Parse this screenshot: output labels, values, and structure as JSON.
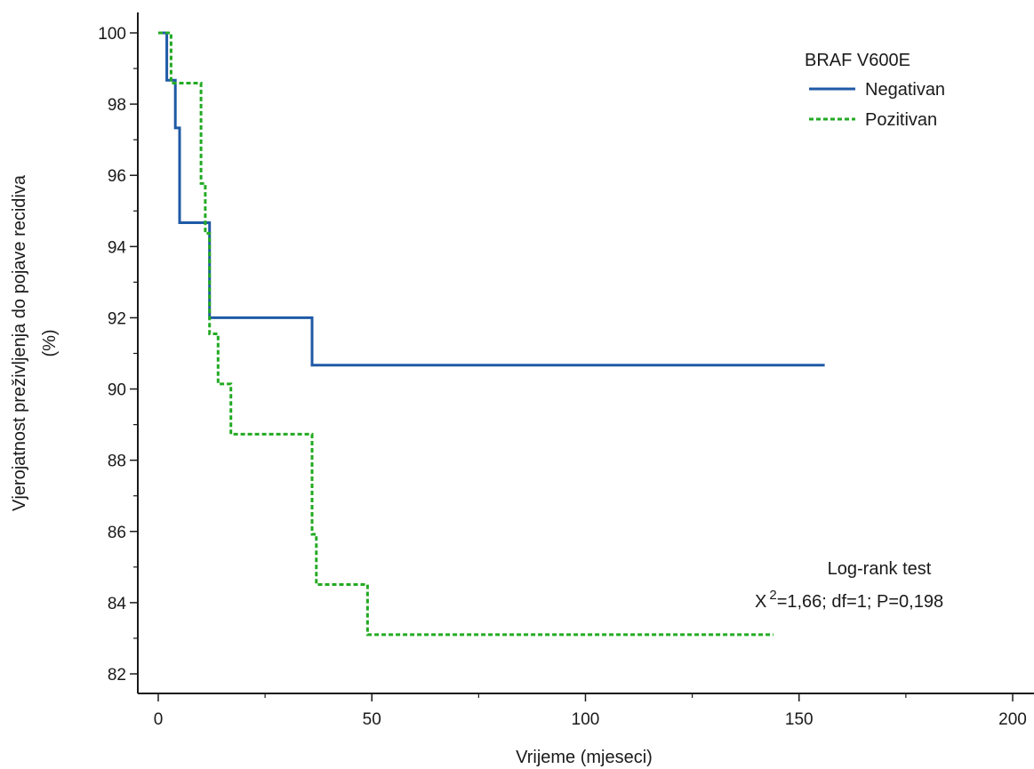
{
  "chart_data": {
    "type": "line",
    "subtype": "kaplan-meier",
    "title": "",
    "xlabel": "Vrijeme (mjeseci)",
    "ylabel_line1": "Vjerojatnost preživljenja do pojave recidiva",
    "ylabel_line2": "(%)",
    "xlim": [
      0,
      200
    ],
    "ylim": [
      82,
      100
    ],
    "x_ticks": [
      0,
      50,
      100,
      150,
      200
    ],
    "y_ticks": [
      82,
      84,
      86,
      88,
      90,
      92,
      94,
      96,
      98,
      100
    ],
    "grid": false,
    "legend": {
      "title": "BRAF V600E",
      "placement": "top-right"
    },
    "series": [
      {
        "name": "Negativan",
        "color": "#1f5aa6",
        "dash": "solid",
        "x": [
          0,
          2,
          2,
          4,
          4,
          5,
          5,
          12,
          12,
          36,
          36,
          156
        ],
        "y": [
          100,
          100,
          98.67,
          98.67,
          97.33,
          97.33,
          94.67,
          94.67,
          92.0,
          92.0,
          90.67,
          90.67
        ]
      },
      {
        "name": "Pozitivan",
        "color": "#22aa22",
        "dash": "dashed",
        "x": [
          0,
          3,
          3,
          10,
          10,
          11,
          11,
          12,
          12,
          14,
          14,
          17,
          17,
          36,
          36,
          37,
          37,
          49,
          49,
          144
        ],
        "y": [
          100,
          100,
          98.59,
          98.59,
          95.77,
          95.77,
          94.37,
          94.37,
          91.55,
          91.55,
          90.14,
          90.14,
          88.73,
          88.73,
          85.92,
          85.92,
          84.51,
          84.51,
          83.1,
          83.1
        ]
      }
    ],
    "annotation": {
      "line1": "Log-rank test",
      "chi_prefix": "X",
      "chi_sup": "2",
      "line2_rest": "=1,66; df=1; P=0,198"
    }
  }
}
